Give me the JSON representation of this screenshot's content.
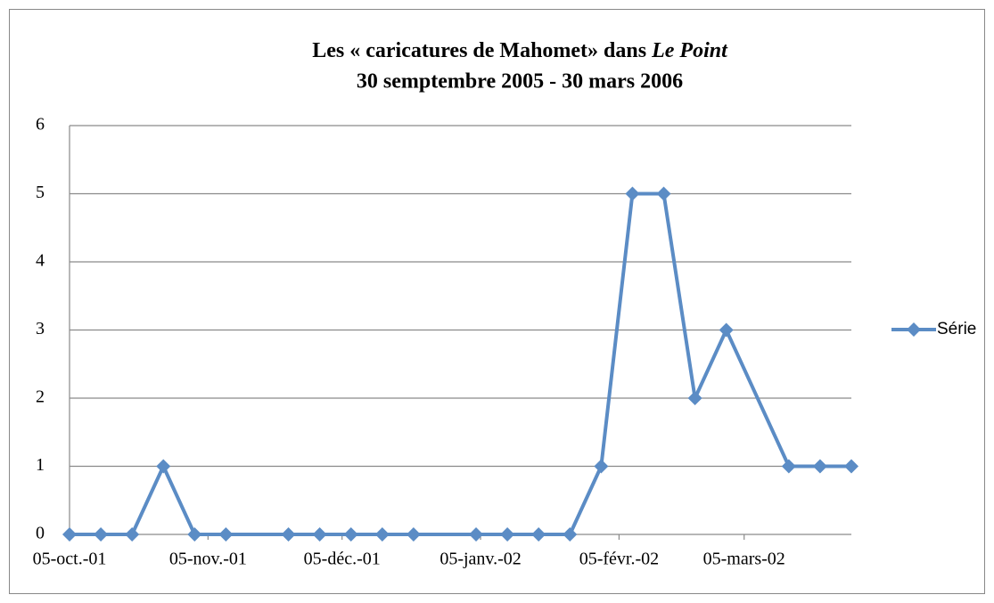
{
  "chart_data": {
    "type": "line",
    "title": {
      "line1": "Les « caricatures de Mahomet»  dans ",
      "line1_italic": "Le Point",
      "line2": "30 semptembre 2005 - 30 mars 2006"
    },
    "x": [
      "2001-10-05",
      "2001-10-12",
      "2001-10-19",
      "2001-10-26",
      "2001-11-02",
      "2001-11-09",
      "2001-11-23",
      "2001-11-30",
      "2001-12-07",
      "2001-12-14",
      "2001-12-21",
      "2002-01-04",
      "2002-01-11",
      "2002-01-18",
      "2002-01-25",
      "2002-02-01",
      "2002-02-08",
      "2002-02-15",
      "2002-02-22",
      "2002-03-01",
      "2002-03-15",
      "2002-03-22",
      "2002-03-29"
    ],
    "series": [
      {
        "name": "Série",
        "color": "#5b8cc5",
        "values": [
          0,
          0,
          0,
          1,
          0,
          0,
          0,
          0,
          0,
          0,
          0,
          0,
          0,
          0,
          0,
          1,
          5,
          5,
          2,
          3,
          1,
          1,
          1
        ]
      }
    ],
    "xlim": [
      "2001-10-05",
      "2002-03-29"
    ],
    "xticks": [
      {
        "value": "2001-10-05",
        "label": "05-oct.-01"
      },
      {
        "value": "2001-11-05",
        "label": "05-nov.-01"
      },
      {
        "value": "2001-12-05",
        "label": "05-déc.-01"
      },
      {
        "value": "2002-01-05",
        "label": "05-janv.-02"
      },
      {
        "value": "2002-02-05",
        "label": "05-févr.-02"
      },
      {
        "value": "2002-03-05",
        "label": "05-mars-02"
      }
    ],
    "ylim": [
      0,
      6
    ],
    "yticks": [
      0,
      1,
      2,
      3,
      4,
      5,
      6
    ],
    "grid": true,
    "legend": "right"
  }
}
